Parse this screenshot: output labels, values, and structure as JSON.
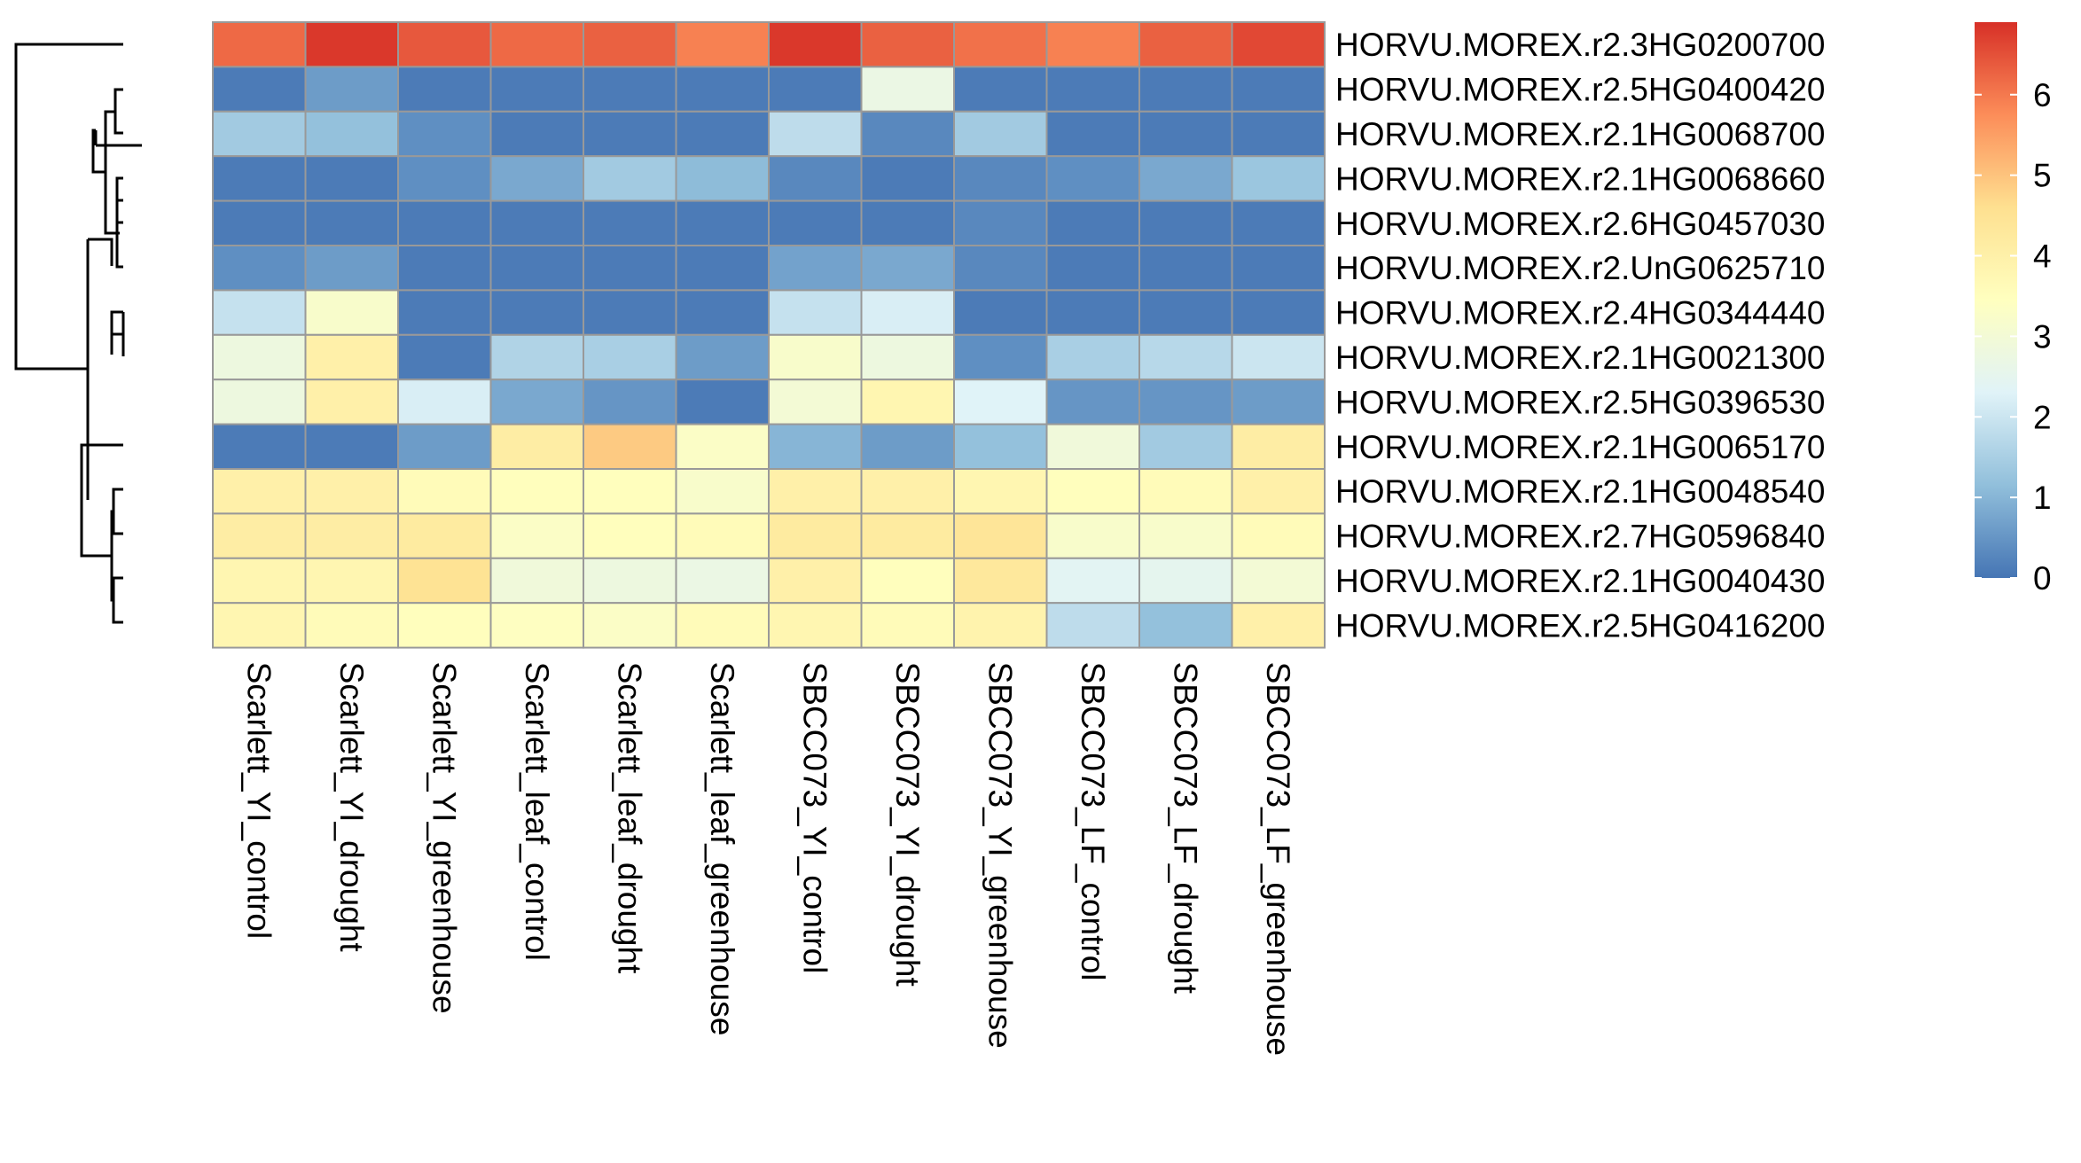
{
  "chart_data": {
    "type": "heatmap",
    "columns": [
      "Scarlett_YI_control",
      "Scarlett_YI_drought",
      "Scarlett_YI_greenhouse",
      "Scarlett_leaf_control",
      "Scarlett_leaf_drought",
      "Scarlett_leaf_greenhouse",
      "SBCC073_YI_control",
      "SBCC073_YI_drought",
      "SBCC073_YI_greenhouse",
      "SBCC073_LF_control",
      "SBCC073_LF_drought",
      "SBCC073_LF_greenhouse"
    ],
    "rows": [
      "HORVU.MOREX.r2.3HG0200700",
      "HORVU.MOREX.r2.5HG0400420",
      "HORVU.MOREX.r2.1HG0068700",
      "HORVU.MOREX.r2.1HG0068660",
      "HORVU.MOREX.r2.6HG0457030",
      "HORVU.MOREX.r2.UnG0625710",
      "HORVU.MOREX.r2.4HG0344440",
      "HORVU.MOREX.r2.1HG0021300",
      "HORVU.MOREX.r2.5HG0396530",
      "HORVU.MOREX.r2.1HG0065170",
      "HORVU.MOREX.r2.1HG0048540",
      "HORVU.MOREX.r2.7HG0596840",
      "HORVU.MOREX.r2.1HG0040430",
      "HORVU.MOREX.r2.5HG0416200"
    ],
    "values": [
      [
        6.2,
        6.8,
        6.4,
        6.2,
        6.3,
        5.9,
        6.8,
        6.3,
        6.1,
        5.9,
        6.3,
        6.6
      ],
      [
        0.1,
        0.6,
        0.1,
        0.1,
        0.1,
        0.1,
        0.1,
        2.7,
        0.1,
        0.1,
        0.1,
        0.1
      ],
      [
        1.4,
        1.2,
        0.4,
        0.1,
        0.1,
        0.1,
        1.8,
        0.3,
        1.4,
        0.1,
        0.1,
        0.1
      ],
      [
        0.1,
        0.1,
        0.4,
        0.8,
        1.4,
        1.1,
        0.3,
        0.1,
        0.3,
        0.4,
        0.8,
        1.3
      ],
      [
        0.1,
        0.1,
        0.1,
        0.1,
        0.1,
        0.1,
        0.1,
        0.1,
        0.3,
        0.1,
        0.1,
        0.1
      ],
      [
        0.4,
        0.6,
        0.1,
        0.1,
        0.1,
        0.1,
        0.7,
        0.8,
        0.3,
        0.1,
        0.1,
        0.1
      ],
      [
        1.9,
        3.2,
        0.1,
        0.1,
        0.1,
        0.1,
        1.9,
        2.2,
        0.1,
        0.1,
        0.1,
        0.1
      ],
      [
        2.8,
        4.0,
        0.1,
        1.6,
        1.5,
        0.6,
        3.2,
        2.8,
        0.4,
        1.5,
        1.7,
        2.0
      ],
      [
        2.8,
        4.0,
        2.2,
        0.8,
        0.5,
        0.1,
        3.0,
        3.8,
        2.3,
        0.5,
        0.5,
        0.6
      ],
      [
        0.1,
        0.1,
        0.6,
        4.1,
        4.9,
        3.3,
        1.0,
        0.6,
        1.2,
        2.9,
        1.4,
        4.1
      ],
      [
        4.0,
        4.0,
        3.6,
        3.5,
        3.5,
        3.2,
        4.0,
        4.0,
        3.8,
        3.5,
        3.6,
        4.0
      ],
      [
        4.1,
        4.1,
        4.2,
        3.3,
        3.5,
        3.6,
        4.2,
        4.2,
        4.4,
        3.2,
        3.2,
        3.6
      ],
      [
        3.8,
        3.8,
        4.5,
        2.9,
        2.8,
        2.7,
        4.0,
        3.5,
        4.3,
        2.4,
        2.5,
        3.0
      ],
      [
        3.8,
        3.6,
        3.5,
        3.4,
        3.3,
        3.6,
        3.8,
        3.6,
        3.9,
        1.8,
        1.2,
        4.0
      ]
    ],
    "scale": {
      "min": 0,
      "max": 6.9,
      "ticks": [
        0,
        1,
        2,
        3,
        4,
        5,
        6
      ]
    },
    "colormap": [
      "#4575B4",
      "#91BFDB",
      "#E0F3F8",
      "#FFFFBF",
      "#FEE090",
      "#FC8D59",
      "#D73027"
    ],
    "cell_border_color": "#999999",
    "row_dendrogram": true,
    "legend": "right"
  }
}
